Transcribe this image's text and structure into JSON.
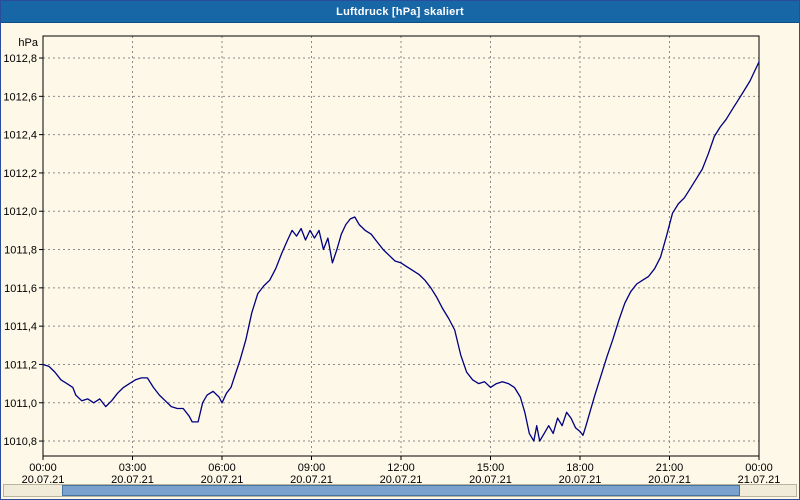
{
  "window": {
    "title": "Luftdruck [hPa] skaliert"
  },
  "chart_data": {
    "type": "line",
    "title": "Luftdruck [hPa] skaliert",
    "unit_label": "hPa",
    "xlabel": "",
    "ylabel": "hPa",
    "xlim": [
      0,
      24
    ],
    "ylim": [
      1010.722,
      1012.915
    ],
    "grid": "dashed",
    "legend": "none",
    "colors": {
      "background": "#fdf8e8",
      "title_bar": "#1766a6",
      "line": "#000080",
      "grid": "#8a8a8a",
      "axis": "#000000"
    },
    "y_ticks": [
      {
        "value": 1012.8,
        "label": "1012,8"
      },
      {
        "value": 1012.6,
        "label": "1012,6"
      },
      {
        "value": 1012.4,
        "label": "1012,4"
      },
      {
        "value": 1012.2,
        "label": "1012,2"
      },
      {
        "value": 1012.0,
        "label": "1012,0"
      },
      {
        "value": 1011.8,
        "label": "1011,8"
      },
      {
        "value": 1011.6,
        "label": "1011,6"
      },
      {
        "value": 1011.4,
        "label": "1011,4"
      },
      {
        "value": 1011.2,
        "label": "1011,2"
      },
      {
        "value": 1011.0,
        "label": "1011,0"
      },
      {
        "value": 1010.8,
        "label": "1010,8"
      }
    ],
    "x_ticks": [
      {
        "hour": 0,
        "time": "00:00",
        "date": "20.07.21"
      },
      {
        "hour": 3,
        "time": "03:00",
        "date": "20.07.21"
      },
      {
        "hour": 6,
        "time": "06:00",
        "date": "20.07.21"
      },
      {
        "hour": 9,
        "time": "09:00",
        "date": "20.07.21"
      },
      {
        "hour": 12,
        "time": "12:00",
        "date": "20.07.21"
      },
      {
        "hour": 15,
        "time": "15:00",
        "date": "20.07.21"
      },
      {
        "hour": 18,
        "time": "18:00",
        "date": "20.07.21"
      },
      {
        "hour": 21,
        "time": "21:00",
        "date": "20.07.21"
      },
      {
        "hour": 24,
        "time": "00:00",
        "date": "21.07.21"
      }
    ],
    "series": [
      {
        "name": "Luftdruck",
        "points": [
          [
            0,
            1011.2
          ],
          [
            0.2,
            1011.19
          ],
          [
            0.4,
            1011.16
          ],
          [
            0.6,
            1011.12
          ],
          [
            0.8,
            1011.1
          ],
          [
            1.0,
            1011.08
          ],
          [
            1.1,
            1011.04
          ],
          [
            1.3,
            1011.01
          ],
          [
            1.5,
            1011.02
          ],
          [
            1.7,
            1011.0
          ],
          [
            1.9,
            1011.02
          ],
          [
            2.1,
            1010.98
          ],
          [
            2.3,
            1011.01
          ],
          [
            2.5,
            1011.05
          ],
          [
            2.7,
            1011.08
          ],
          [
            2.9,
            1011.1
          ],
          [
            3.1,
            1011.12
          ],
          [
            3.3,
            1011.13
          ],
          [
            3.5,
            1011.13
          ],
          [
            3.7,
            1011.08
          ],
          [
            3.9,
            1011.04
          ],
          [
            4.1,
            1011.01
          ],
          [
            4.3,
            1010.98
          ],
          [
            4.5,
            1010.97
          ],
          [
            4.7,
            1010.97
          ],
          [
            4.9,
            1010.93
          ],
          [
            5.0,
            1010.9
          ],
          [
            5.2,
            1010.9
          ],
          [
            5.35,
            1011.0
          ],
          [
            5.5,
            1011.04
          ],
          [
            5.7,
            1011.06
          ],
          [
            5.9,
            1011.03
          ],
          [
            6.0,
            1011.0
          ],
          [
            6.15,
            1011.05
          ],
          [
            6.3,
            1011.08
          ],
          [
            6.45,
            1011.15
          ],
          [
            6.6,
            1011.22
          ],
          [
            6.8,
            1011.33
          ],
          [
            7.0,
            1011.47
          ],
          [
            7.2,
            1011.57
          ],
          [
            7.4,
            1011.61
          ],
          [
            7.6,
            1011.64
          ],
          [
            7.8,
            1011.7
          ],
          [
            8.0,
            1011.78
          ],
          [
            8.2,
            1011.85
          ],
          [
            8.35,
            1011.9
          ],
          [
            8.5,
            1011.87
          ],
          [
            8.65,
            1011.91
          ],
          [
            8.8,
            1011.85
          ],
          [
            8.95,
            1011.9
          ],
          [
            9.1,
            1011.86
          ],
          [
            9.25,
            1011.9
          ],
          [
            9.4,
            1011.8
          ],
          [
            9.55,
            1011.86
          ],
          [
            9.7,
            1011.73
          ],
          [
            9.85,
            1011.8
          ],
          [
            10.0,
            1011.88
          ],
          [
            10.15,
            1011.93
          ],
          [
            10.3,
            1011.96
          ],
          [
            10.45,
            1011.97
          ],
          [
            10.6,
            1011.93
          ],
          [
            10.8,
            1011.9
          ],
          [
            11.0,
            1011.88
          ],
          [
            11.2,
            1011.84
          ],
          [
            11.4,
            1011.8
          ],
          [
            11.6,
            1011.77
          ],
          [
            11.8,
            1011.74
          ],
          [
            12.0,
            1011.73
          ],
          [
            12.2,
            1011.71
          ],
          [
            12.4,
            1011.69
          ],
          [
            12.6,
            1011.67
          ],
          [
            12.8,
            1011.64
          ],
          [
            13.0,
            1011.6
          ],
          [
            13.2,
            1011.55
          ],
          [
            13.4,
            1011.49
          ],
          [
            13.6,
            1011.44
          ],
          [
            13.8,
            1011.38
          ],
          [
            14.0,
            1011.25
          ],
          [
            14.2,
            1011.16
          ],
          [
            14.4,
            1011.12
          ],
          [
            14.6,
            1011.1
          ],
          [
            14.8,
            1011.11
          ],
          [
            15.0,
            1011.08
          ],
          [
            15.2,
            1011.1
          ],
          [
            15.4,
            1011.11
          ],
          [
            15.6,
            1011.1
          ],
          [
            15.8,
            1011.08
          ],
          [
            16.0,
            1011.03
          ],
          [
            16.15,
            1010.95
          ],
          [
            16.3,
            1010.84
          ],
          [
            16.45,
            1010.8
          ],
          [
            16.55,
            1010.88
          ],
          [
            16.65,
            1010.8
          ],
          [
            16.8,
            1010.84
          ],
          [
            16.95,
            1010.88
          ],
          [
            17.1,
            1010.84
          ],
          [
            17.25,
            1010.92
          ],
          [
            17.4,
            1010.88
          ],
          [
            17.55,
            1010.95
          ],
          [
            17.7,
            1010.92
          ],
          [
            17.85,
            1010.87
          ],
          [
            18.0,
            1010.85
          ],
          [
            18.1,
            1010.83
          ],
          [
            18.2,
            1010.88
          ],
          [
            18.35,
            1010.96
          ],
          [
            18.5,
            1011.04
          ],
          [
            18.7,
            1011.14
          ],
          [
            18.9,
            1011.24
          ],
          [
            19.1,
            1011.33
          ],
          [
            19.3,
            1011.43
          ],
          [
            19.5,
            1011.52
          ],
          [
            19.7,
            1011.58
          ],
          [
            19.9,
            1011.62
          ],
          [
            20.1,
            1011.64
          ],
          [
            20.3,
            1011.66
          ],
          [
            20.5,
            1011.7
          ],
          [
            20.7,
            1011.76
          ],
          [
            20.9,
            1011.87
          ],
          [
            21.1,
            1011.99
          ],
          [
            21.3,
            1012.04
          ],
          [
            21.5,
            1012.07
          ],
          [
            21.7,
            1012.12
          ],
          [
            21.9,
            1012.17
          ],
          [
            22.1,
            1012.22
          ],
          [
            22.3,
            1012.3
          ],
          [
            22.5,
            1012.39
          ],
          [
            22.7,
            1012.44
          ],
          [
            22.9,
            1012.48
          ],
          [
            23.1,
            1012.53
          ],
          [
            23.3,
            1012.58
          ],
          [
            23.5,
            1012.63
          ],
          [
            23.7,
            1012.68
          ],
          [
            23.85,
            1012.73
          ],
          [
            24.0,
            1012.78
          ]
        ]
      }
    ]
  }
}
